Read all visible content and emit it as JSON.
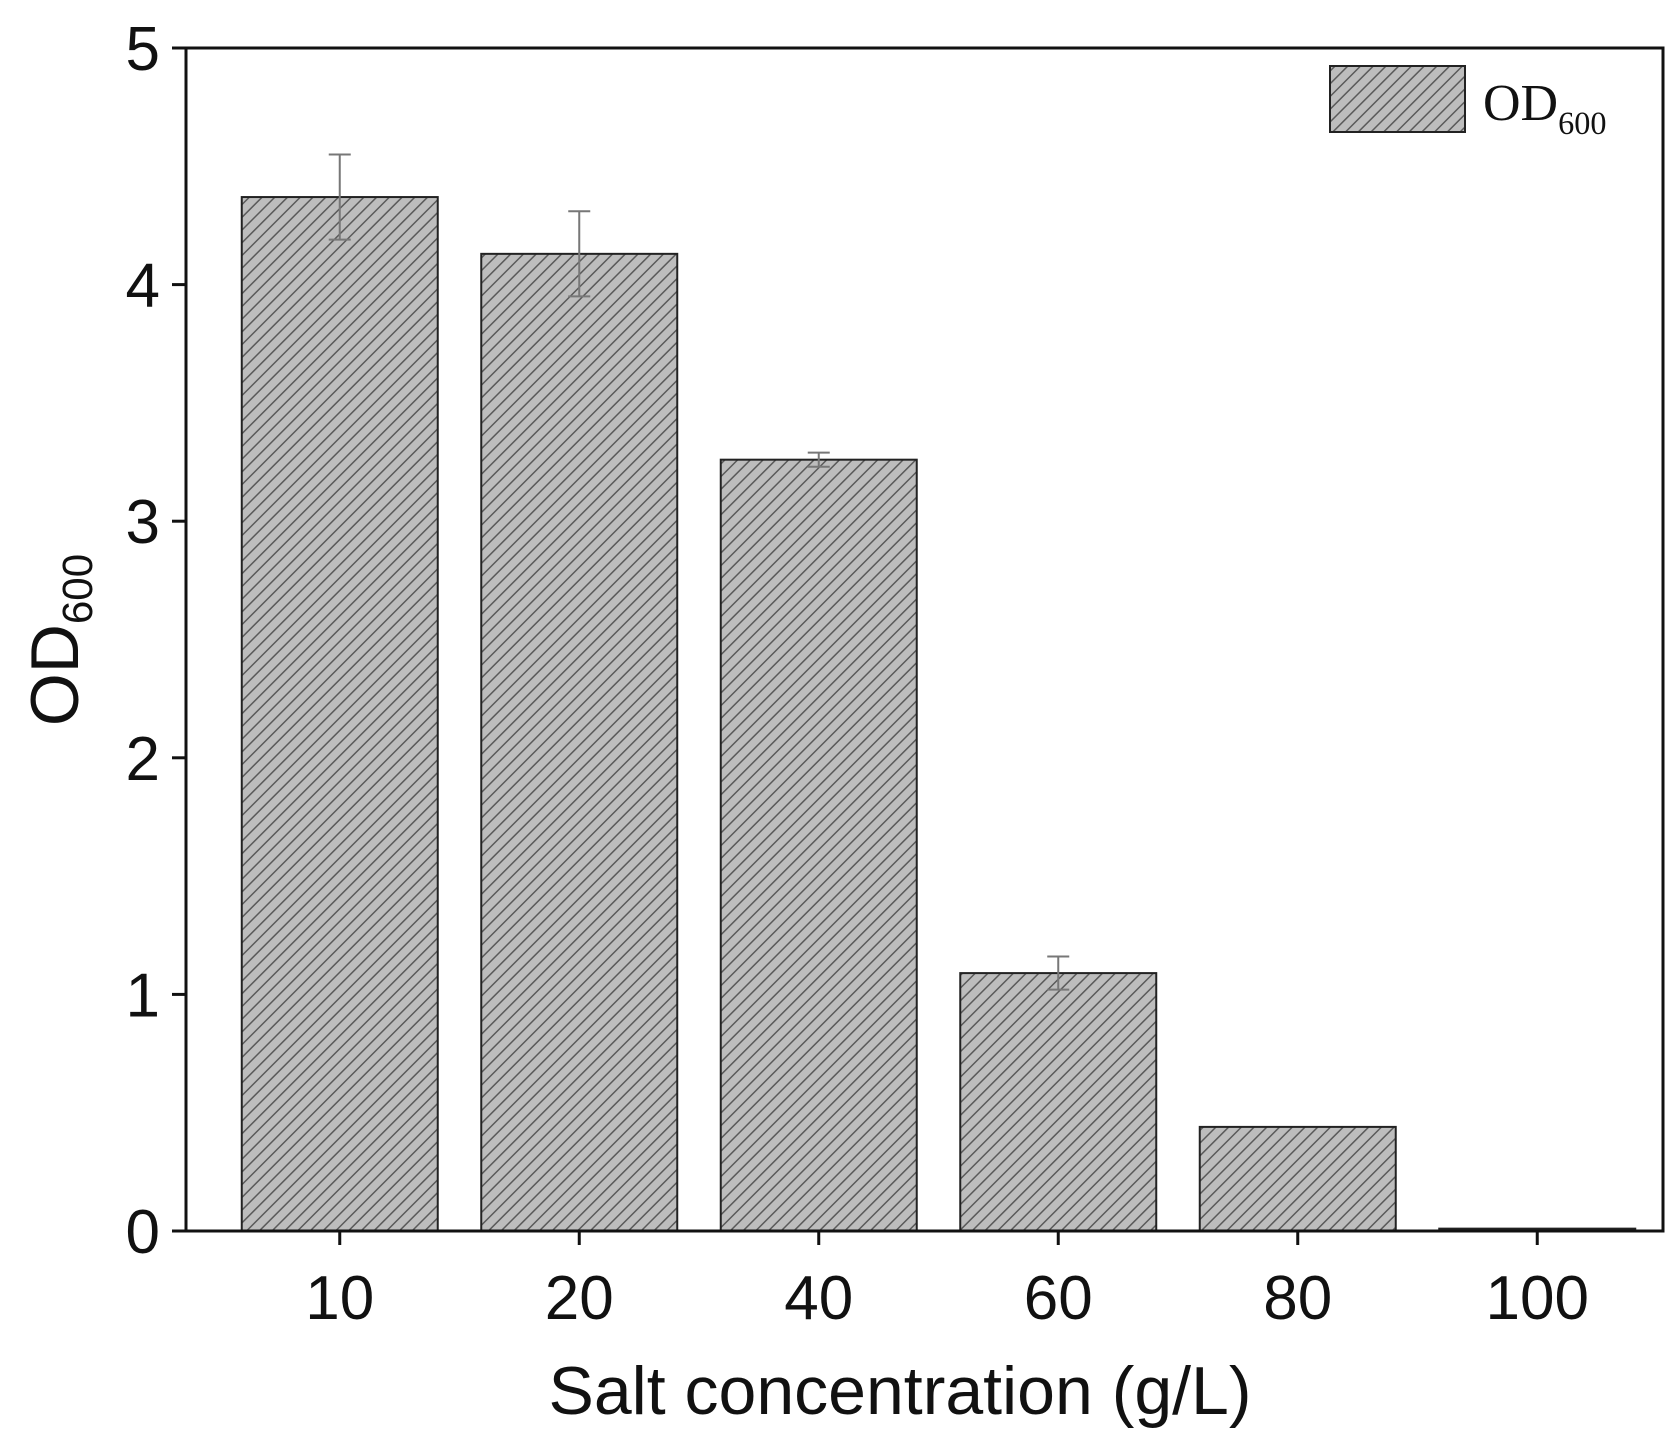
{
  "chart_data": {
    "type": "bar",
    "categories": [
      "10",
      "20",
      "40",
      "60",
      "80",
      "100"
    ],
    "series": [
      {
        "name": "OD600",
        "values": [
          4.37,
          4.13,
          3.26,
          1.09,
          0.44,
          0.01
        ],
        "errors": [
          0.18,
          0.18,
          0.03,
          0.07,
          0.0,
          0.0
        ]
      }
    ],
    "xlabel": "Salt concentration (g/L)",
    "ylabel": "OD600",
    "ylabel_main": "OD",
    "ylabel_sub": "600",
    "ylim": [
      0,
      5
    ],
    "yticks": [
      "0",
      "1",
      "2",
      "3",
      "4",
      "5"
    ],
    "legend": {
      "main": "OD",
      "sub": "600",
      "position": "top-right"
    },
    "bar_fill": "#bdbdbd",
    "hatch_color": "#555555",
    "grid": false
  }
}
